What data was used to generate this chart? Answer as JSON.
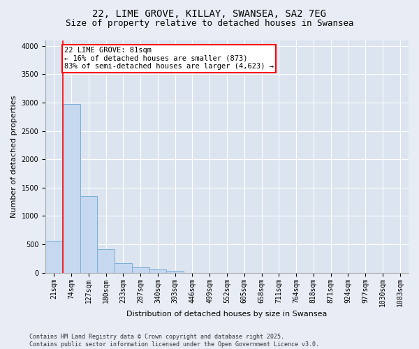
{
  "title1": "22, LIME GROVE, KILLAY, SWANSEA, SA2 7EG",
  "title2": "Size of property relative to detached houses in Swansea",
  "xlabel": "Distribution of detached houses by size in Swansea",
  "ylabel": "Number of detached properties",
  "categories": [
    "21sqm",
    "74sqm",
    "127sqm",
    "180sqm",
    "233sqm",
    "287sqm",
    "340sqm",
    "393sqm",
    "446sqm",
    "499sqm",
    "552sqm",
    "605sqm",
    "658sqm",
    "711sqm",
    "764sqm",
    "818sqm",
    "871sqm",
    "924sqm",
    "977sqm",
    "1030sqm",
    "1083sqm"
  ],
  "values": [
    560,
    2970,
    1350,
    420,
    165,
    90,
    55,
    35,
    0,
    0,
    0,
    0,
    0,
    0,
    0,
    0,
    0,
    0,
    0,
    0,
    0
  ],
  "bar_color": "#c5d8f0",
  "bar_edge_color": "#7aaed6",
  "vline_color": "red",
  "annotation_text": "22 LIME GROVE: 81sqm\n← 16% of detached houses are smaller (873)\n83% of semi-detached houses are larger (4,623) →",
  "annotation_box_color": "white",
  "annotation_box_edge_color": "red",
  "ylim": [
    0,
    4100
  ],
  "yticks": [
    0,
    500,
    1000,
    1500,
    2000,
    2500,
    3000,
    3500,
    4000
  ],
  "background_color": "#e8edf5",
  "plot_background_color": "#dce4f0",
  "footer": "Contains HM Land Registry data © Crown copyright and database right 2025.\nContains public sector information licensed under the Open Government Licence v3.0.",
  "title_fontsize": 10,
  "subtitle_fontsize": 9,
  "tick_fontsize": 7,
  "ylabel_fontsize": 8,
  "xlabel_fontsize": 8,
  "annotation_fontsize": 7.5,
  "footer_fontsize": 6
}
